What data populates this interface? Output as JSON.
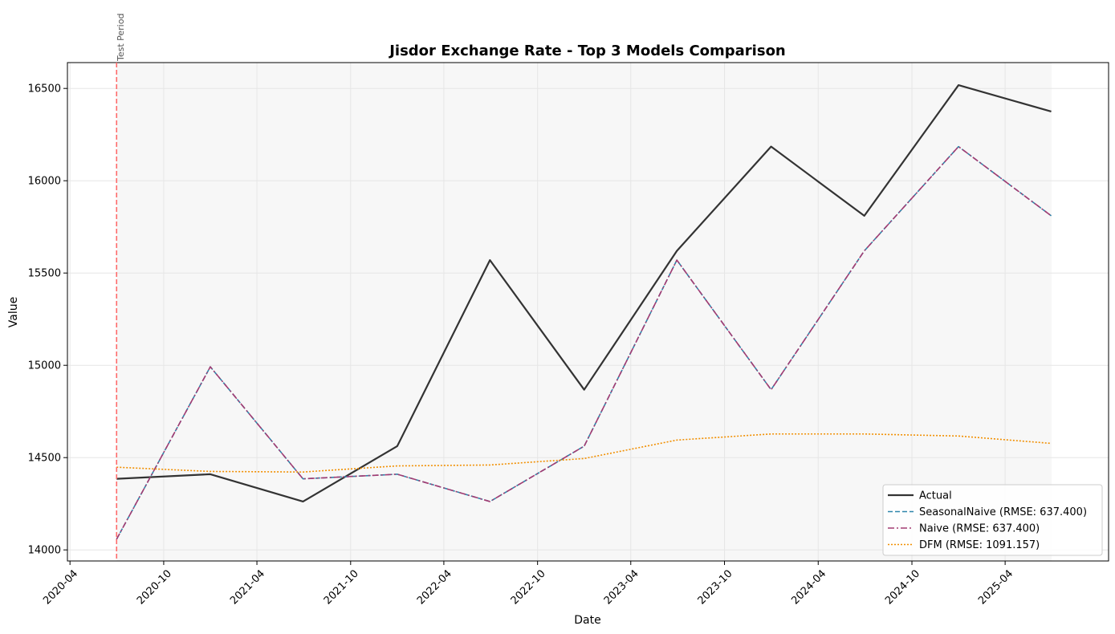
{
  "chart_data": {
    "type": "line",
    "title": "Jisdor Exchange Rate - Top 3 Models Comparison",
    "xlabel": "Date",
    "ylabel": "Value",
    "xlim": [
      "2020-03-27",
      "2025-10-20"
    ],
    "ylim": [
      13940,
      16640
    ],
    "x_ticks": [
      "2020-04",
      "2020-10",
      "2021-04",
      "2021-10",
      "2022-04",
      "2022-10",
      "2023-04",
      "2023-10",
      "2024-04",
      "2024-10",
      "2025-04"
    ],
    "y_ticks": [
      14000,
      14500,
      15000,
      15500,
      16000,
      16500
    ],
    "grid": true,
    "legend_position": "bottom-right",
    "test_period": {
      "start": "2020-07-01",
      "end": "2025-07-01",
      "label": "Test Period",
      "line_color": "#ff6b6b",
      "shade_color": "#f7f7f7"
    },
    "x": [
      "2020-07-01",
      "2020-12-31",
      "2021-06-30",
      "2021-12-31",
      "2022-06-30",
      "2022-12-31",
      "2023-06-30",
      "2023-12-31",
      "2024-06-30",
      "2024-12-31",
      "2025-06-30"
    ],
    "series": [
      {
        "name": "Actual",
        "color": "#333333",
        "style": "solid",
        "values": [
          14385,
          14410,
          14262,
          14562,
          15570,
          14868,
          15620,
          16185,
          15810,
          16518,
          16375
        ]
      },
      {
        "name": "SeasonalNaive (RMSE: 637.400)",
        "color": "#2e86ab",
        "style": "dashed",
        "values": [
          14058,
          14992,
          14385,
          14410,
          14262,
          14562,
          15570,
          14868,
          15620,
          16185,
          15810
        ]
      },
      {
        "name": "Naive (RMSE: 637.400)",
        "color": "#a23b72",
        "style": "dashdot",
        "values": [
          14058,
          14992,
          14385,
          14410,
          14262,
          14562,
          15570,
          14868,
          15620,
          16185,
          15810
        ]
      },
      {
        "name": "DFM (RMSE: 1091.157)",
        "color": "#f18f01",
        "style": "dotted",
        "values": [
          14448,
          14425,
          14422,
          14455,
          14460,
          14495,
          14595,
          14628,
          14628,
          14617,
          14577
        ]
      }
    ]
  }
}
